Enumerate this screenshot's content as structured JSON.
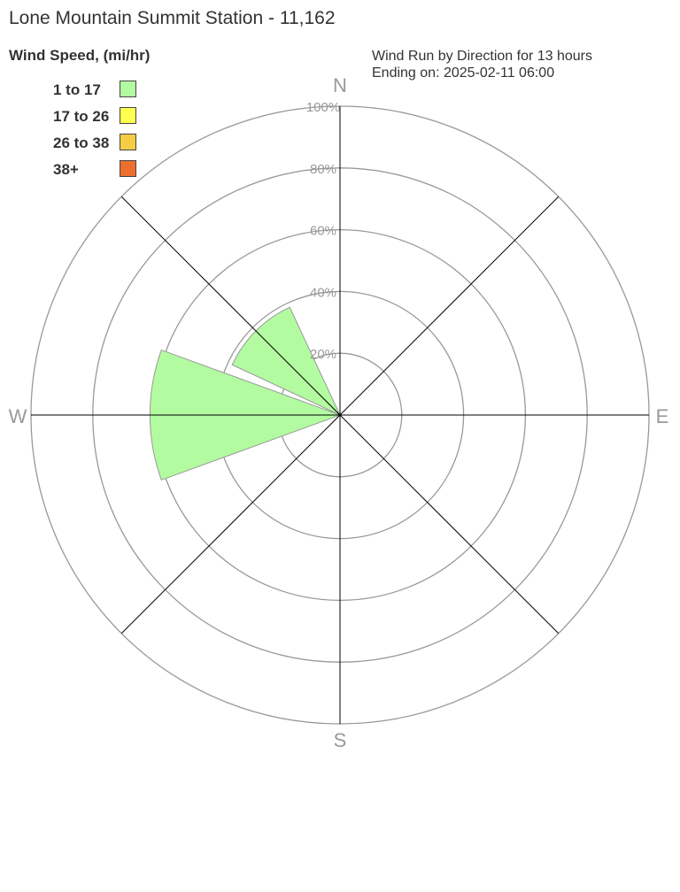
{
  "title": "Lone Mountain Summit Station - 11,162",
  "subtitle_line1": "Wind Run by Direction for 13 hours",
  "subtitle_line2": "Ending on: 2025-02-11 06:00",
  "chart_data": {
    "type": "wind-rose",
    "legend_title": "Wind Speed, (mi/hr)",
    "legend_placement": "top-left",
    "speed_bins": [
      {
        "label": "1 to 17",
        "color": "#b3fba0"
      },
      {
        "label": "17 to 26",
        "color": "#ffff4f"
      },
      {
        "label": "26 to 38",
        "color": "#f6cc45"
      },
      {
        "label": "38+",
        "color": "#ec6f2f"
      }
    ],
    "compass_labels": [
      "N",
      "E",
      "S",
      "W"
    ],
    "ring_labels": [
      "20%",
      "40%",
      "60%",
      "80%",
      "100%"
    ],
    "rlim": [
      0,
      100
    ],
    "directions": [
      "N",
      "NE",
      "E",
      "SE",
      "S",
      "SW",
      "W",
      "NW"
    ],
    "series": [
      {
        "bin": "1 to 17",
        "values": [
          0,
          0,
          0,
          0,
          0,
          0,
          61.5,
          38.5
        ]
      },
      {
        "bin": "17 to 26",
        "values": [
          0,
          0,
          0,
          0,
          0,
          0,
          0,
          0
        ]
      },
      {
        "bin": "26 to 38",
        "values": [
          0,
          0,
          0,
          0,
          0,
          0,
          0,
          0
        ]
      },
      {
        "bin": "38+",
        "values": [
          0,
          0,
          0,
          0,
          0,
          0,
          0,
          0
        ]
      }
    ]
  }
}
